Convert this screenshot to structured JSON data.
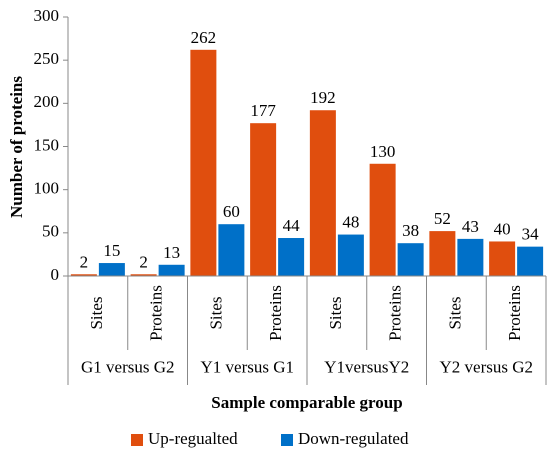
{
  "chart_data": {
    "type": "bar",
    "ylabel": "Number of proteins",
    "xlabel": "Sample comparable group",
    "ylim": [
      0,
      300
    ],
    "yticks": [
      0,
      50,
      100,
      150,
      200,
      250,
      300
    ],
    "grid": false,
    "legend_position": "bottom",
    "groups": [
      {
        "label": "G1 versus G2",
        "categories": [
          "Sites",
          "Proteins"
        ]
      },
      {
        "label": "Y1 versus G1",
        "categories": [
          "Sites",
          "Proteins"
        ]
      },
      {
        "label": "Y1versusY2",
        "categories": [
          "Sites",
          "Proteins"
        ]
      },
      {
        "label": "Y2 versus G2",
        "categories": [
          "Sites",
          "Proteins"
        ]
      }
    ],
    "series": [
      {
        "name": "Up-regualted",
        "color": "#e04e0e",
        "values": [
          2,
          2,
          262,
          177,
          192,
          130,
          52,
          40
        ]
      },
      {
        "name": "Down-regulated",
        "color": "#0070c8",
        "values": [
          15,
          13,
          60,
          44,
          48,
          38,
          43,
          34
        ]
      }
    ]
  }
}
